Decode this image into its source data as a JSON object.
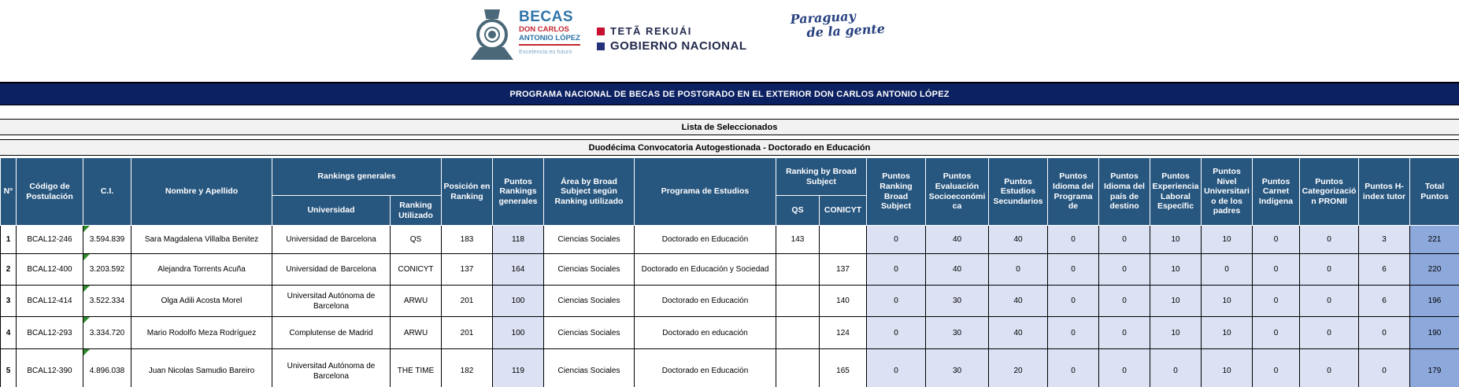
{
  "logos": {
    "becas": {
      "title": "BECAS",
      "line2": "DON CARLOS",
      "line3": "ANTONIO LÓPEZ",
      "tagline": "Excelencia es futuro"
    },
    "gov": {
      "line1": "TETÃ REKUÁI",
      "line2": "GOBIERNO NACIONAL"
    },
    "paraguay": {
      "line1": "Paraguay",
      "line2": "de la gente"
    }
  },
  "banner": {
    "title": "PROGRAMA NACIONAL DE BECAS DE POSTGRADO EN EL EXTERIOR DON CARLOS ANTONIO LÓPEZ"
  },
  "subtitles": {
    "lista": "Lista de Seleccionados",
    "convocatoria": "Duodécima Convocatoria Autogestionada - Doctorado en Educación"
  },
  "table": {
    "headers": {
      "n": "N°",
      "codigo": "Código de Postulación",
      "ci": "C.I.",
      "nombre": "Nombre y Apellido",
      "rankings_generales": "Rankings generales",
      "universidad": "Universidad",
      "ranking_utilizado": "Ranking Utilizado",
      "posicion": "Posición en Ranking",
      "puntos_rankings": "Puntos Rankings generales",
      "area": "Área by Broad Subject según Ranking utilizado",
      "programa": "Programa de Estudios",
      "ranking_broad": "Ranking by Broad Subject",
      "qs": "QS",
      "conicyt": "CONICYT",
      "puntos_broad": "Puntos Ranking Broad Subject",
      "puntos_socio": "Puntos Evaluación Socioeconómica",
      "puntos_secundarios": "Puntos Estudios Secundarios",
      "puntos_idioma_programa": "Puntos Idioma del Programa de",
      "puntos_idioma_pais": "Puntos Idioma del país de destino",
      "puntos_experiencia": "Puntos Experiencia Laboral Específic",
      "puntos_nivel": "Puntos Nivel Universitario de los padres",
      "puntos_carnet": "Puntos Carnet Indígena",
      "puntos_pronii": "Puntos Categorización PRONII",
      "puntos_hindex": "Puntos H-index tutor",
      "total": "Total Puntos"
    },
    "rows": [
      {
        "n": "1",
        "codigo": "BCAL12-246",
        "ci": "3.594.839",
        "nombre": "Sara Magdalena Villalba Benitez",
        "universidad": "Universidad de Barcelona",
        "ranking": "QS",
        "posicion": "183",
        "puntos_rankings": "118",
        "area": "Ciencias Sociales",
        "programa": "Doctorado en Educación",
        "qs": "143",
        "conicyt": "",
        "puntos": [
          "0",
          "40",
          "40",
          "0",
          "0",
          "10",
          "10",
          "0",
          "0",
          "3"
        ],
        "total": "221"
      },
      {
        "n": "2",
        "codigo": "BCAL12-400",
        "ci": "3.203.592",
        "nombre": "Alejandra Torrents Acuña",
        "universidad": "Universidad de Barcelona",
        "ranking": "CONICYT",
        "posicion": "137",
        "puntos_rankings": "164",
        "area": "Ciencias Sociales",
        "programa": "Doctorado en Educación y Sociedad",
        "qs": "",
        "conicyt": "137",
        "puntos": [
          "0",
          "40",
          "0",
          "0",
          "0",
          "10",
          "0",
          "0",
          "0",
          "6"
        ],
        "total": "220"
      },
      {
        "n": "3",
        "codigo": "BCAL12-414",
        "ci": "3.522.334",
        "nombre": "Olga Adili Acosta Morel",
        "universidad": "Universitad Autónoma de Barcelona",
        "ranking": "ARWU",
        "posicion": "201",
        "puntos_rankings": "100",
        "area": "Ciencias Sociales",
        "programa": "Doctorado en Educación",
        "qs": "",
        "conicyt": "140",
        "puntos": [
          "0",
          "30",
          "40",
          "0",
          "0",
          "10",
          "10",
          "0",
          "0",
          "6"
        ],
        "total": "196"
      },
      {
        "n": "4",
        "codigo": "BCAL12-293",
        "ci": "3.334.720",
        "nombre": "Mario Rodolfo Meza Rodríguez",
        "universidad": "Complutense de Madrid",
        "ranking": "ARWU",
        "posicion": "201",
        "puntos_rankings": "100",
        "area": "Ciencias Sociales",
        "programa": "Doctorado en educación",
        "qs": "",
        "conicyt": "124",
        "puntos": [
          "0",
          "30",
          "40",
          "0",
          "0",
          "10",
          "10",
          "0",
          "0",
          "0"
        ],
        "total": "190"
      },
      {
        "n": "5",
        "codigo": "BCAL12-390",
        "ci": "4.896.038",
        "nombre": "Juan Nicolas Samudio Bareiro",
        "universidad": "Universitad Autónoma de Barcelona",
        "ranking": "THE TIME",
        "posicion": "182",
        "puntos_rankings": "119",
        "area": "Ciencias Sociales",
        "programa": "Doctorado en Educación",
        "qs": "",
        "conicyt": "165",
        "puntos": [
          "0",
          "30",
          "20",
          "0",
          "0",
          "0",
          "10",
          "0",
          "0",
          "0"
        ],
        "total": "179"
      }
    ]
  },
  "colors": {
    "header_blue": "#27567F",
    "banner_navy": "#0B2161",
    "cell_lavender": "#DCE1F3",
    "total_blue": "#8DA9DC",
    "comment_green": "#2E8B2E",
    "band_gray": "#F2F2F2"
  }
}
